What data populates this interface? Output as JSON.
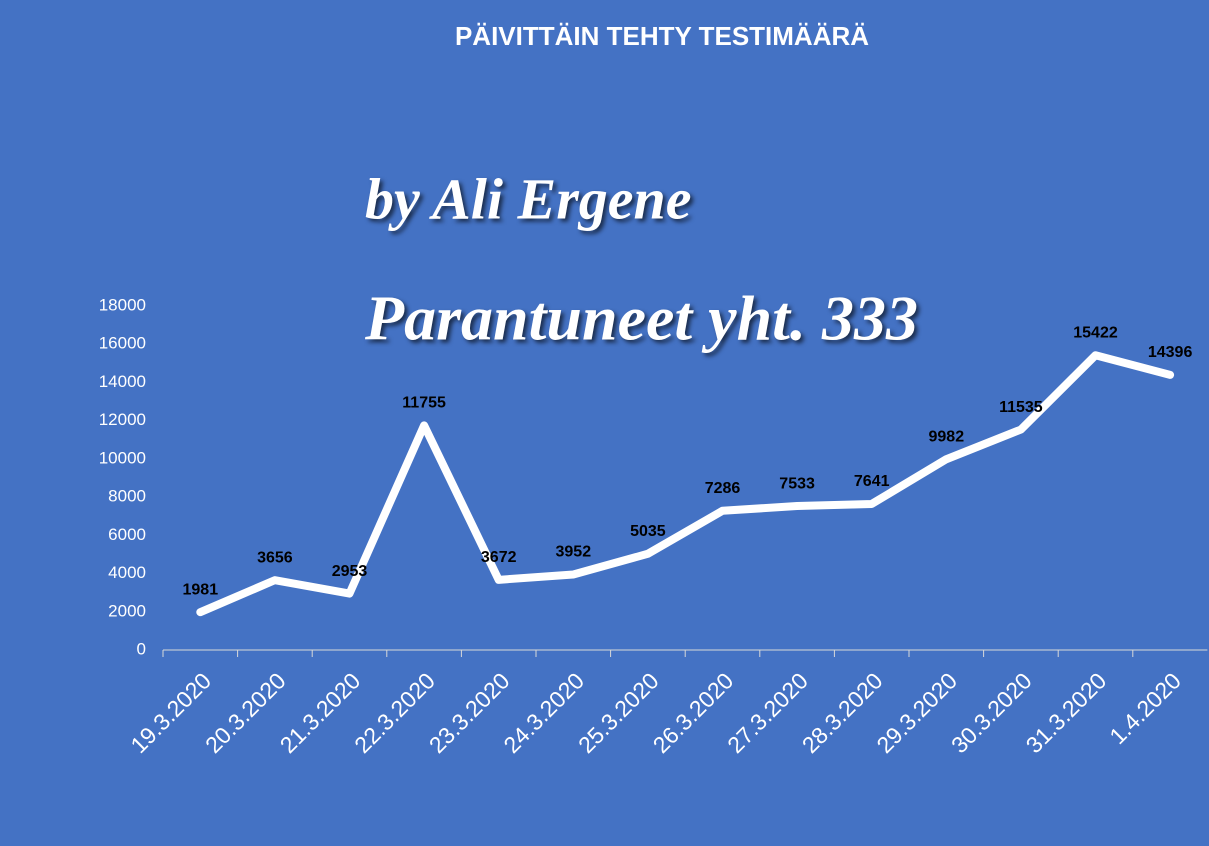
{
  "chart_data": {
    "type": "line",
    "title": "PÄIVITTÄIN TEHTY TESTIMÄÄRÄ",
    "annotations": [
      "by Ali Ergene",
      "Parantuneet yht. 333"
    ],
    "categories": [
      "19.3.2020",
      "20.3.2020",
      "21.3.2020",
      "22.3.2020",
      "23.3.2020",
      "24.3.2020",
      "25.3.2020",
      "26.3.2020",
      "27.3.2020",
      "28.3.2020",
      "29.3.2020",
      "30.3.2020",
      "31.3.2020",
      "1.4.2020"
    ],
    "series": [
      {
        "color": "#ffffff",
        "values": [
          1981,
          3656,
          2953,
          11755,
          3672,
          3952,
          5035,
          7286,
          7533,
          7641,
          9982,
          11535,
          15422,
          14396
        ]
      }
    ],
    "ylim": [
      0,
      18000
    ],
    "yticks": [
      0,
      2000,
      4000,
      6000,
      8000,
      10000,
      12000,
      14000,
      16000,
      18000
    ],
    "grid": false
  }
}
